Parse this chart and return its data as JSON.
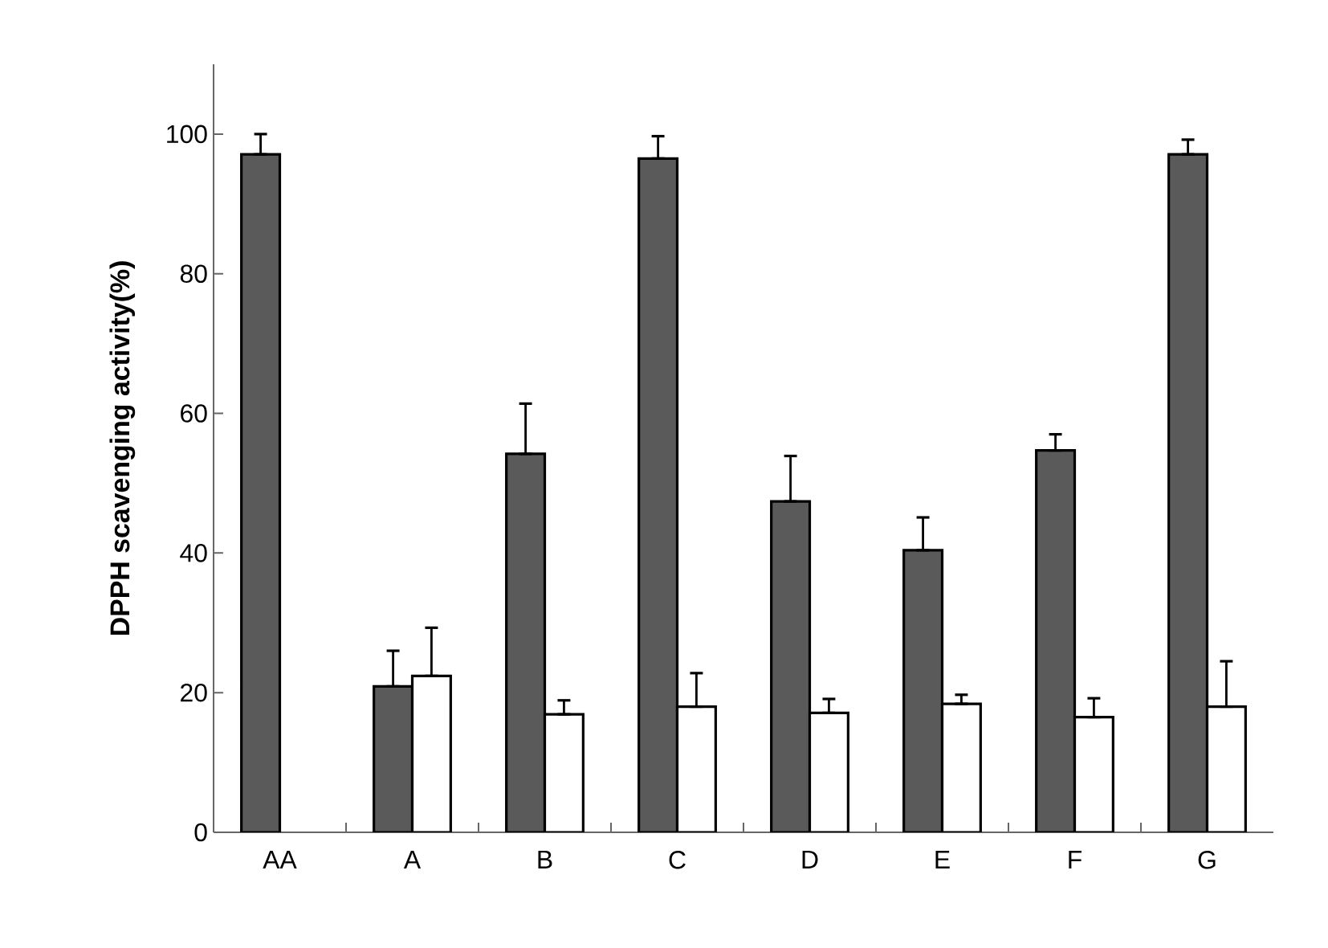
{
  "chart_data": {
    "type": "bar",
    "ylabel": "**DPPH scavenging activity(%)**",
    "categories": [
      "AA",
      "A",
      "B",
      "C",
      "D",
      "E",
      "F",
      "G"
    ],
    "series": [
      {
        "color": "#5a5a5a",
        "values": [
          97.1,
          20.9,
          54.2,
          96.5,
          47.4,
          40.4,
          54.7,
          97.1
        ],
        "errors": [
          [
            97.1,
            100.0
          ],
          [
            20.9,
            26.0
          ],
          [
            54.2,
            61.4
          ],
          [
            96.5,
            99.7
          ],
          [
            47.4,
            53.9
          ],
          [
            40.4,
            45.1
          ],
          [
            54.7,
            57.0
          ],
          [
            97.1,
            99.2
          ]
        ]
      },
      {
        "color": "#ffffff",
        "values": [
          null,
          22.4,
          16.9,
          18.0,
          17.1,
          18.4,
          16.5,
          18.0
        ],
        "errors": [
          null,
          [
            22.4,
            29.3
          ],
          [
            16.9,
            18.9
          ],
          [
            18.0,
            22.8
          ],
          [
            17.1,
            19.1
          ],
          [
            18.4,
            19.7
          ],
          [
            16.5,
            19.2
          ],
          [
            18.0,
            24.5
          ]
        ]
      }
    ],
    "ylim": [
      0,
      110
    ],
    "yticks": [
      0,
      20,
      40,
      60,
      80,
      100
    ],
    "grid": false
  }
}
